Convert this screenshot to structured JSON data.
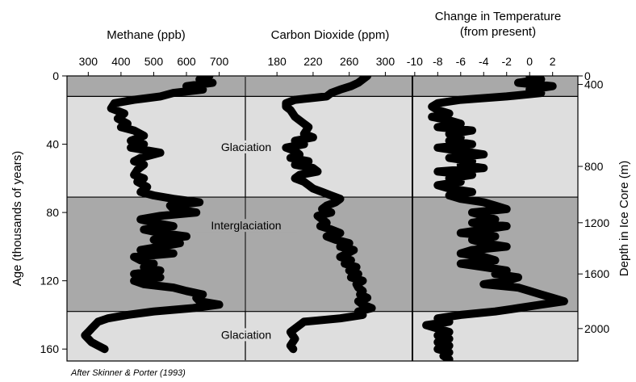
{
  "chart_data": {
    "type": "line",
    "panels": [
      {
        "name": "methane",
        "title": "Methane (ppb)",
        "xlim": [
          235,
          780
        ],
        "xticks": [
          300,
          400,
          500,
          600,
          700
        ],
        "xtick_labels": [
          "300",
          "400",
          "500",
          "600",
          "700"
        ],
        "series": [
          {
            "age": [
              0,
              2,
              4,
              6,
              8,
              10,
              12,
              14,
              16,
              19,
              22,
              25,
              28,
              30,
              32,
              35,
              38,
              40,
              42,
              45,
              48,
              50,
              52,
              55,
              58,
              60,
              62,
              65,
              68,
              70,
              72,
              74,
              76,
              78,
              80,
              82,
              84,
              86,
              88,
              90,
              92,
              94,
              96,
              98,
              100,
              102,
              104,
              106,
              108,
              110,
              112,
              114,
              116,
              118,
              120,
              122,
              124,
              126,
              128,
              130,
              132,
              134,
              136,
              138,
              140,
              142,
              144,
              146,
              148,
              150,
              152,
              154,
              156,
              158,
              160
            ],
            "values": [
              670,
              640,
              680,
              600,
              650,
              560,
              520,
              440,
              380,
              370,
              410,
              390,
              420,
              400,
              440,
              470,
              430,
              470,
              430,
              520,
              460,
              440,
              470,
              450,
              440,
              470,
              450,
              480,
              460,
              500,
              560,
              640,
              550,
              560,
              630,
              520,
              460,
              500,
              560,
              470,
              520,
              600,
              500,
              580,
              520,
              460,
              560,
              440,
              460,
              500,
              470,
              520,
              440,
              520,
              440,
              470,
              560,
              600,
              650,
              630,
              640,
              700,
              620,
              500,
              420,
              360,
              330,
              320,
              310,
              300,
              290,
              300,
              310,
              330,
              350
            ]
          }
        ]
      },
      {
        "name": "carbon-dioxide",
        "title": "Carbon Dioxide (ppm)",
        "xlim": [
          145,
          330
        ],
        "xticks": [
          180,
          220,
          260,
          300
        ],
        "xtick_labels": [
          "180",
          "220",
          "260",
          "300"
        ],
        "series": [
          {
            "age": [
              0,
              2,
              4,
              6,
              8,
              10,
              12,
              14,
              16,
              18,
              20,
              24,
              28,
              30,
              34,
              36,
              38,
              40,
              42,
              44,
              46,
              48,
              50,
              52,
              54,
              56,
              58,
              60,
              62,
              64,
              66,
              68,
              70,
              72,
              74,
              76,
              78,
              80,
              82,
              84,
              86,
              88,
              90,
              92,
              94,
              96,
              98,
              100,
              102,
              104,
              106,
              108,
              110,
              112,
              114,
              116,
              118,
              120,
              122,
              124,
              126,
              128,
              130,
              132,
              134,
              136,
              138,
              140,
              142,
              144,
              146,
              150,
              154,
              158,
              160
            ],
            "values": [
              280,
              275,
              270,
              262,
              250,
              240,
              235,
              200,
              190,
              190,
              195,
              200,
              210,
              215,
              210,
              220,
              200,
              210,
              190,
              200,
              205,
              195,
              215,
              200,
              220,
              225,
              205,
              200,
              210,
              215,
              220,
              230,
              240,
              250,
              245,
              235,
              230,
              240,
              225,
              230,
              235,
              228,
              240,
              250,
              235,
              245,
              260,
              250,
              265,
              258,
              250,
              262,
              255,
              268,
              260,
              270,
              262,
              275,
              268,
              270,
              275,
              272,
              280,
              270,
              275,
              285,
              270,
              275,
              250,
              210,
              205,
              195,
              200,
              195,
              198
            ]
          }
        ]
      },
      {
        "name": "temperature-change",
        "title": "Change in Temperature\n(from present)",
        "xlim": [
          -10.2,
          4.2
        ],
        "xticks": [
          -10,
          -8,
          -6,
          -4,
          -2,
          0,
          2
        ],
        "xtick_labels": [
          "-10",
          "-8",
          "-6",
          "-4",
          "-2",
          "0",
          "2"
        ],
        "series": [
          {
            "age": [
              0,
              2,
              4,
              6,
              8,
              10,
              12,
              14,
              16,
              18,
              20,
              22,
              24,
              26,
              28,
              30,
              32,
              34,
              36,
              38,
              40,
              42,
              44,
              46,
              48,
              50,
              52,
              54,
              56,
              58,
              60,
              62,
              64,
              66,
              68,
              70,
              72,
              74,
              76,
              78,
              80,
              82,
              84,
              86,
              88,
              90,
              92,
              94,
              96,
              98,
              100,
              102,
              104,
              106,
              108,
              110,
              112,
              114,
              116,
              118,
              120,
              122,
              124,
              126,
              128,
              130,
              132,
              134,
              136,
              138,
              140,
              142,
              144,
              146,
              148,
              150,
              152,
              154,
              156,
              158,
              160,
              162,
              164,
              166
            ],
            "values": [
              0,
              1,
              -1,
              2,
              0,
              1,
              -2,
              -6,
              -8,
              -8.5,
              -8,
              -7,
              -8.5,
              -7,
              -6,
              -8,
              -5,
              -7,
              -6,
              -7,
              -5,
              -8,
              -6,
              -4,
              -7,
              -5,
              -6,
              -4,
              -8,
              -5,
              -7,
              -6,
              -8,
              -7,
              -5,
              -7,
              -6,
              -4,
              -3,
              -2,
              -5,
              -4,
              -3,
              -5,
              -2,
              -4,
              -6,
              -3,
              -5,
              -4,
              -2,
              -5,
              -6,
              -4,
              -3,
              -6,
              -4,
              -2,
              -3,
              -1,
              -2,
              -4,
              -1,
              0,
              1,
              2,
              3,
              1,
              -1,
              -3,
              -6,
              -8,
              -7,
              -9,
              -8,
              -7,
              -8,
              -7,
              -8,
              -7,
              -8,
              -7,
              -7.5,
              -7
            ]
          }
        ]
      }
    ],
    "ylabel_left": "Age (thousands of years)",
    "ylim_age": [
      0,
      167
    ],
    "yticks_left": [
      0,
      40,
      80,
      120,
      160
    ],
    "yticks_left_labels": [
      "0",
      "40",
      "80",
      "120",
      "160"
    ],
    "ylabel_right": "Depth in Ice Core (m)",
    "yticks_right": [
      {
        "label": "0",
        "age": 0
      },
      {
        "label": "400",
        "age": 5
      },
      {
        "label": "800",
        "age": 53
      },
      {
        "label": "1200",
        "age": 86
      },
      {
        "label": "1600",
        "age": 116
      },
      {
        "label": "2000",
        "age": 148
      }
    ],
    "bands": [
      {
        "from": 0,
        "to": 12,
        "label": "",
        "color": "#a9a9a9"
      },
      {
        "from": 12,
        "to": 71,
        "label": "Glaciation",
        "color": "#dedede"
      },
      {
        "from": 71,
        "to": 138,
        "label": "Interglaciation",
        "color": "#a9a9a9"
      },
      {
        "from": 138,
        "to": 167,
        "label": "Glaciation",
        "color": "#dedede"
      }
    ],
    "credit": "After Skinner & Porter (1993)",
    "line_color": "#000000"
  }
}
